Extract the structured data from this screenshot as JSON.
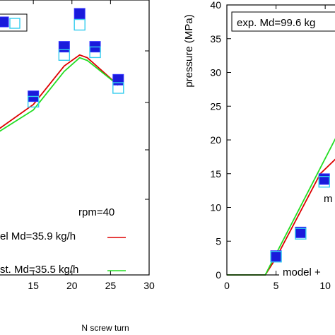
{
  "chart_data": [
    {
      "type": "line",
      "xlabel": "N screw turn",
      "ylabel": "",
      "xlim": [
        10.5,
        30
      ],
      "x_ticks": [
        15,
        20,
        25,
        30
      ],
      "x_tick_labels": [
        "15",
        "20",
        "25",
        "30"
      ],
      "ylim": [
        0,
        10
      ],
      "annotations": [
        {
          "text": "rpm=40"
        }
      ],
      "legend": [
        {
          "text": "el Md=35.9 kg/h",
          "color": "#dd0000"
        },
        {
          "text": "st. Md=35.5 kg/h",
          "color": "#22dd22"
        }
      ],
      "series": [
        {
          "kind": "line",
          "color": "#dd0000",
          "x": [
            10.5,
            15,
            19,
            21,
            22,
            26
          ],
          "y": [
            5.3,
            6.2,
            7.6,
            8.0,
            7.9,
            6.9
          ]
        },
        {
          "kind": "line",
          "color": "#22dd22",
          "x": [
            10.5,
            15,
            19,
            21,
            22,
            26
          ],
          "y": [
            5.2,
            6.0,
            7.4,
            7.9,
            7.8,
            6.9
          ]
        },
        {
          "kind": "markers-filled",
          "color": "#1a1adb",
          "x": [
            15,
            19,
            21,
            23,
            26
          ],
          "y": [
            6.5,
            8.3,
            9.5,
            8.3,
            7.1
          ]
        },
        {
          "kind": "markers-open",
          "color": "#33ccee",
          "x": [
            15,
            19,
            21,
            23,
            26
          ],
          "y": [
            6.3,
            8.0,
            9.1,
            8.1,
            6.8
          ]
        }
      ]
    },
    {
      "type": "line",
      "xlabel": "",
      "ylabel": "pressure (MPa)",
      "xlim": [
        0,
        11.5
      ],
      "ylim": [
        0,
        40
      ],
      "x_ticks": [
        0,
        5,
        10
      ],
      "x_tick_labels": [
        "0",
        "5",
        "10"
      ],
      "y_ticks": [
        0,
        5,
        10,
        15,
        20,
        25,
        30,
        35,
        40
      ],
      "y_tick_labels": [
        "0",
        "5",
        "10",
        "15",
        "20",
        "25",
        "30",
        "35",
        "40"
      ],
      "annotations": [
        {
          "text": "exp. Md=99.6 kg"
        },
        {
          "text": "m"
        },
        {
          "text": "model +"
        }
      ],
      "series": [
        {
          "kind": "line",
          "color": "#dd0000",
          "x": [
            0,
            3.9,
            5.0,
            9.5,
            11.5
          ],
          "y": [
            0,
            0,
            2.5,
            15.0,
            17.8
          ]
        },
        {
          "kind": "line",
          "color": "#22dd22",
          "x": [
            0,
            3.9,
            11.5
          ],
          "y": [
            0,
            0,
            21.5
          ]
        },
        {
          "kind": "markers-filled",
          "color": "#1a1adb",
          "x": [
            5.0,
            7.5,
            9.9
          ],
          "y": [
            2.8,
            6.3,
            14.2
          ]
        },
        {
          "kind": "markers-open",
          "color": "#33ccee",
          "x": [
            5.0,
            7.5,
            9.9
          ],
          "y": [
            2.7,
            6.1,
            13.8
          ]
        }
      ]
    }
  ]
}
